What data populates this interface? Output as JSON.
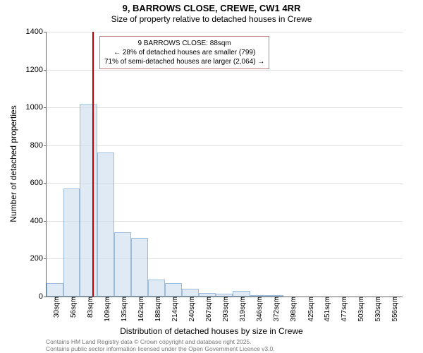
{
  "title_line1": "9, BARROWS CLOSE, CREWE, CW1 4RR",
  "title_line2": "Size of property relative to detached houses in Crewe",
  "y_axis_label": "Number of detached properties",
  "x_axis_label": "Distribution of detached houses by size in Crewe",
  "chart": {
    "type": "histogram",
    "background_color": "#ffffff",
    "grid_color": "#e0e0e0",
    "axis_color": "#666666",
    "bar_fill": "#d0e0f0",
    "bar_fill_opacity": 0.65,
    "bar_border": "#6699cc",
    "ref_line_color": "#c00000",
    "ref_line_x": 88,
    "y_min": 0,
    "y_max": 1400,
    "y_ticks": [
      0,
      200,
      400,
      600,
      800,
      1000,
      1200,
      1400
    ],
    "x_min": 17,
    "x_max": 570,
    "x_tick_labels": [
      "30sqm",
      "56sqm",
      "83sqm",
      "109sqm",
      "135sqm",
      "162sqm",
      "188sqm",
      "214sqm",
      "240sqm",
      "267sqm",
      "293sqm",
      "319sqm",
      "346sqm",
      "372sqm",
      "398sqm",
      "425sqm",
      "451sqm",
      "477sqm",
      "503sqm",
      "530sqm",
      "556sqm"
    ],
    "x_tick_values": [
      30,
      56,
      83,
      109,
      135,
      162,
      188,
      214,
      240,
      267,
      293,
      319,
      346,
      372,
      398,
      425,
      451,
      477,
      503,
      530,
      556
    ],
    "bars": [
      {
        "x0": 17,
        "x1": 43,
        "y": 70
      },
      {
        "x0": 43,
        "x1": 69,
        "y": 570
      },
      {
        "x0": 69,
        "x1": 96,
        "y": 1015
      },
      {
        "x0": 96,
        "x1": 122,
        "y": 760
      },
      {
        "x0": 122,
        "x1": 148,
        "y": 340
      },
      {
        "x0": 148,
        "x1": 175,
        "y": 310
      },
      {
        "x0": 175,
        "x1": 201,
        "y": 90
      },
      {
        "x0": 201,
        "x1": 227,
        "y": 70
      },
      {
        "x0": 227,
        "x1": 253,
        "y": 40
      },
      {
        "x0": 253,
        "x1": 280,
        "y": 20
      },
      {
        "x0": 280,
        "x1": 306,
        "y": 15
      },
      {
        "x0": 306,
        "x1": 333,
        "y": 30
      },
      {
        "x0": 333,
        "x1": 359,
        "y": 5
      },
      {
        "x0": 359,
        "x1": 385,
        "y": 5
      }
    ]
  },
  "annotation": {
    "title": "9 BARROWS CLOSE: 88sqm",
    "line1": "← 28% of detached houses are smaller (799)",
    "line2": "71% of semi-detached houses are larger (2,064) →",
    "border_color": "#c08080",
    "font_size": 10
  },
  "attribution": {
    "line1": "Contains HM Land Registry data © Crown copyright and database right 2025.",
    "line2": "Contains public sector information licensed under the Open Government Licence v3.0.",
    "color": "#777777",
    "font_size": 8.5
  }
}
